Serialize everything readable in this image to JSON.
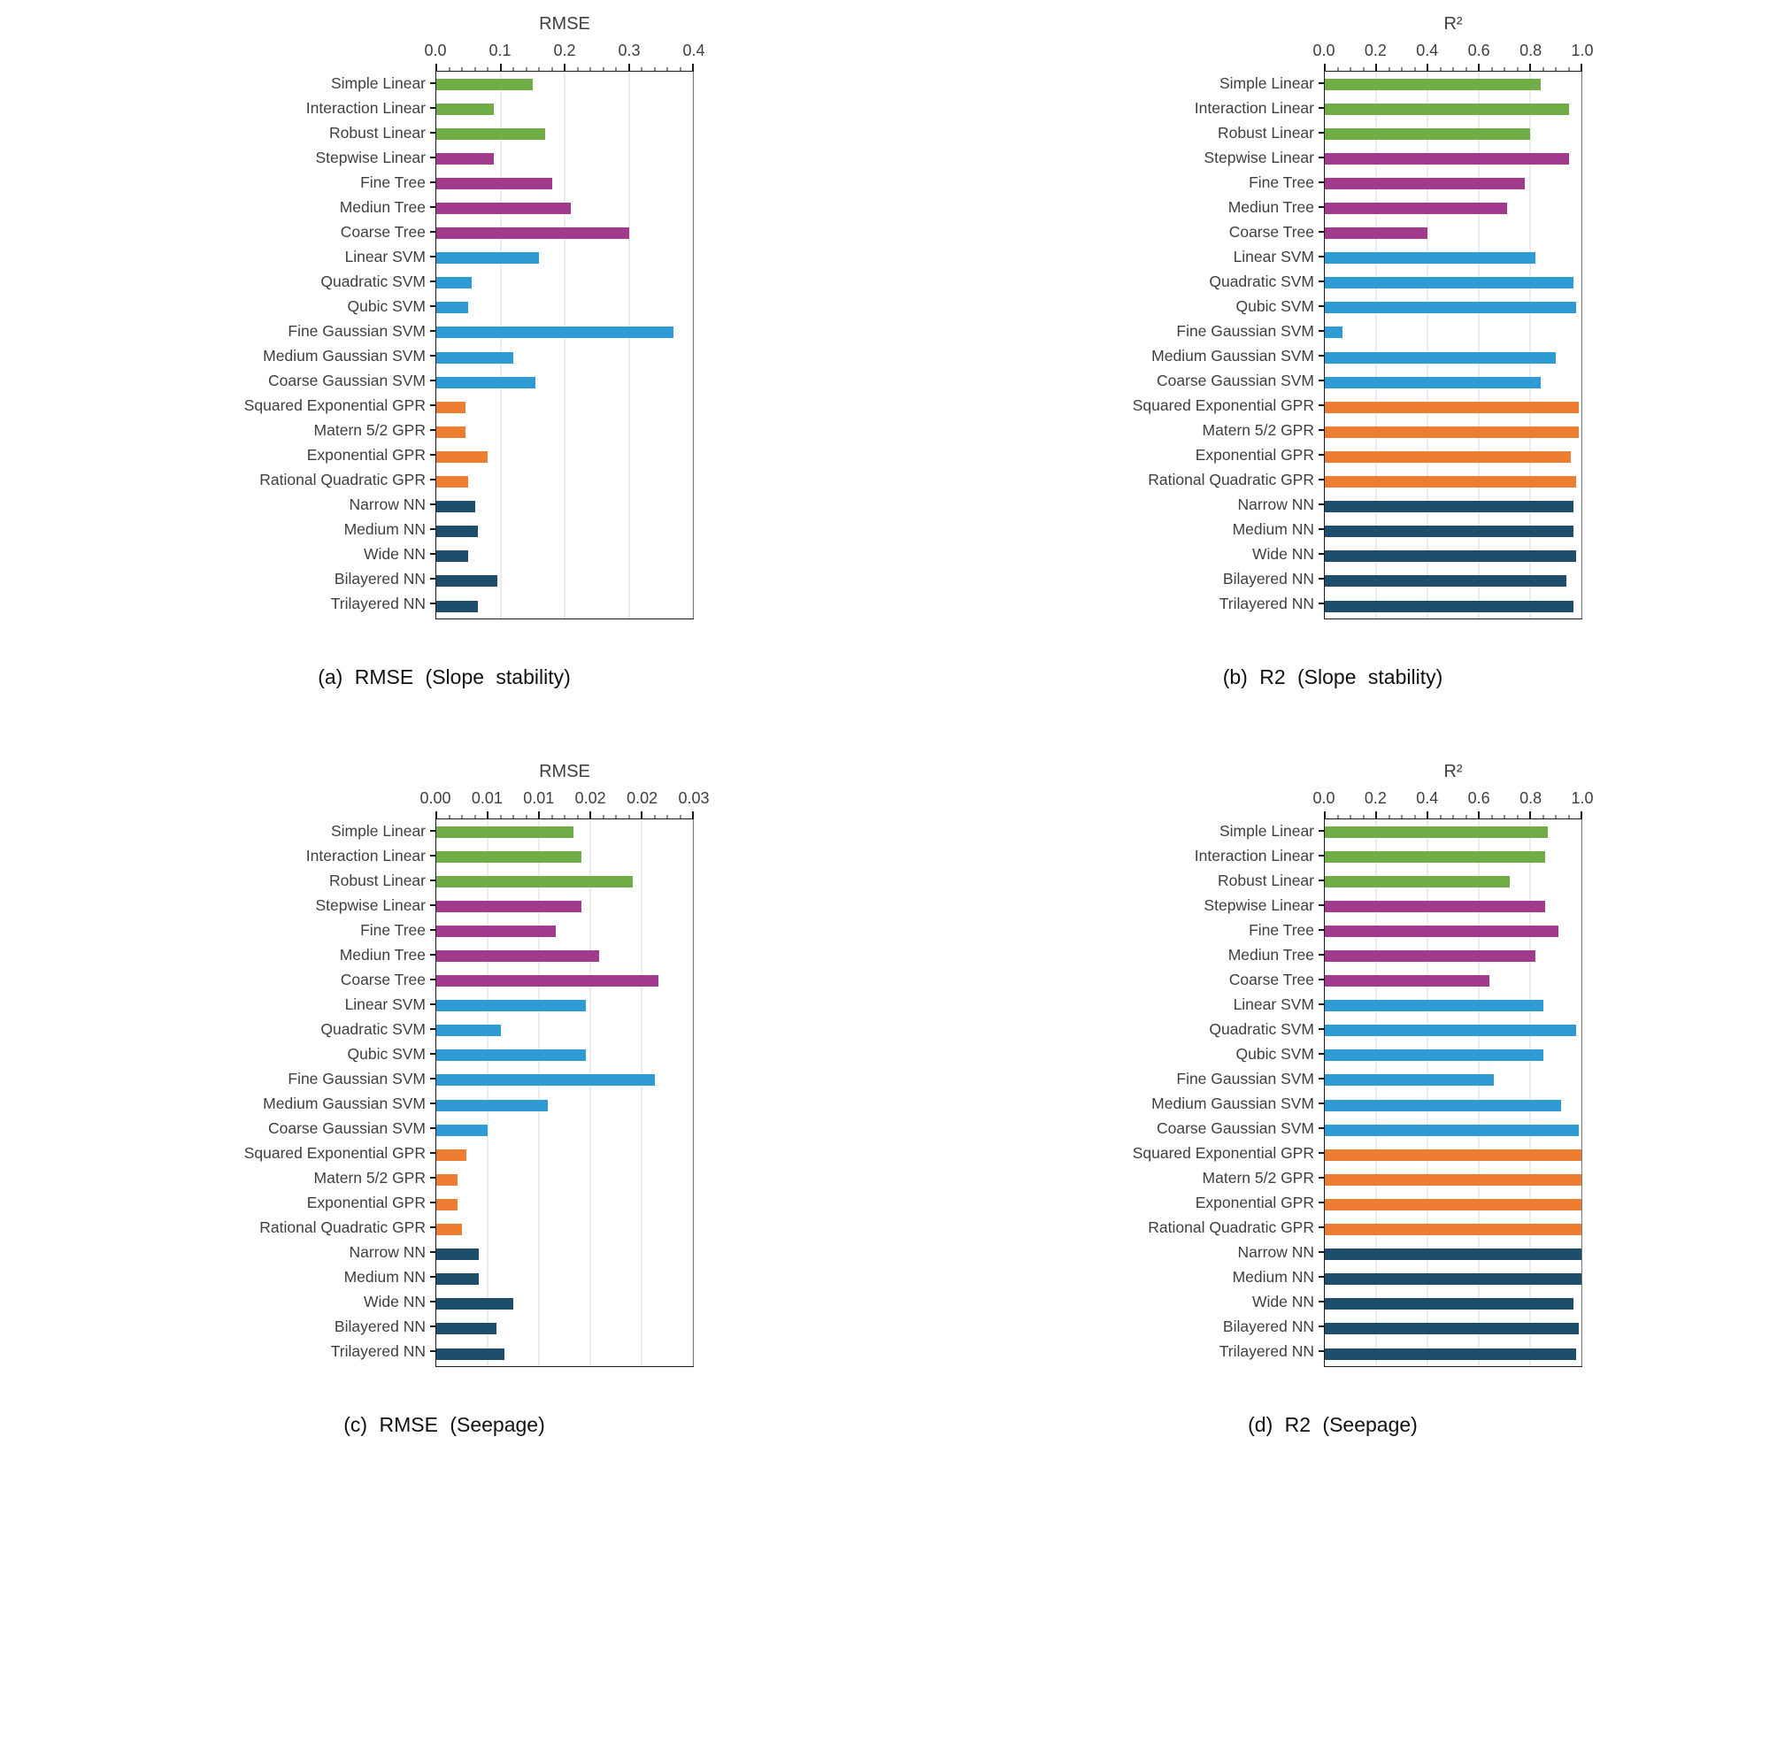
{
  "colors": {
    "linear": "#70AD47",
    "tree": "#A23B8E",
    "svm": "#2E9BD5",
    "gpr": "#ED7D31",
    "nn": "#1E4E6B"
  },
  "category_groups": [
    "linear",
    "linear",
    "linear",
    "tree",
    "tree",
    "tree",
    "tree",
    "svm",
    "svm",
    "svm",
    "svm",
    "svm",
    "svm",
    "gpr",
    "gpr",
    "gpr",
    "gpr",
    "nn",
    "nn",
    "nn",
    "nn",
    "nn"
  ],
  "chart_data": [
    {
      "id": "a",
      "type": "bar",
      "orientation": "horizontal",
      "axis_title": "RMSE",
      "caption": "(a) RMSE (Slope stability)",
      "xlim": [
        0,
        0.4
      ],
      "ticks": [
        0,
        0.1,
        0.2,
        0.3,
        0.4
      ],
      "tick_labels": [
        "0.0",
        "0.1",
        "0.2",
        "0.3",
        "0.4"
      ],
      "minor_per_major": 4,
      "grid": true,
      "legend": false,
      "categories": [
        "Simple Linear",
        "Interaction Linear",
        "Robust Linear",
        "Stepwise Linear",
        "Fine Tree",
        "Mediun Tree",
        "Coarse Tree",
        "Linear SVM",
        "Quadratic SVM",
        "Qubic SVM",
        "Fine Gaussian SVM",
        "Medium Gaussian SVM",
        "Coarse Gaussian SVM",
        "Squared Exponential GPR",
        "Matern 5/2 GPR",
        "Exponential GPR",
        "Rational Quadratic GPR",
        "Narrow NN",
        "Medium NN",
        "Wide NN",
        "Bilayered NN",
        "Trilayered NN"
      ],
      "values": [
        0.15,
        0.09,
        0.17,
        0.09,
        0.18,
        0.21,
        0.3,
        0.16,
        0.055,
        0.05,
        0.37,
        0.12,
        0.155,
        0.045,
        0.045,
        0.08,
        0.05,
        0.06,
        0.065,
        0.05,
        0.095,
        0.065
      ]
    },
    {
      "id": "b",
      "type": "bar",
      "orientation": "horizontal",
      "axis_title": "R²",
      "caption": "(b) R2 (Slope stability)",
      "xlim": [
        0,
        1.0
      ],
      "ticks": [
        0,
        0.2,
        0.4,
        0.6,
        0.8,
        1.0
      ],
      "tick_labels": [
        "0.0",
        "0.2",
        "0.4",
        "0.6",
        "0.8",
        "1.0"
      ],
      "minor_per_major": 3,
      "grid": true,
      "legend": false,
      "categories": [
        "Simple Linear",
        "Interaction Linear",
        "Robust Linear",
        "Stepwise Linear",
        "Fine Tree",
        "Mediun Tree",
        "Coarse Tree",
        "Linear SVM",
        "Quadratic SVM",
        "Qubic SVM",
        "Fine Gaussian SVM",
        "Medium Gaussian SVM",
        "Coarse Gaussian SVM",
        "Squared Exponential GPR",
        "Matern 5/2 GPR",
        "Exponential GPR",
        "Rational Quadratic GPR",
        "Narrow NN",
        "Medium NN",
        "Wide NN",
        "Bilayered NN",
        "Trilayered NN"
      ],
      "values": [
        0.84,
        0.95,
        0.8,
        0.95,
        0.78,
        0.71,
        0.4,
        0.82,
        0.97,
        0.98,
        0.07,
        0.9,
        0.84,
        0.99,
        0.99,
        0.96,
        0.98,
        0.97,
        0.97,
        0.98,
        0.94,
        0.97
      ]
    },
    {
      "id": "c",
      "type": "bar",
      "orientation": "horizontal",
      "axis_title": "RMSE",
      "caption": "(c) RMSE (Seepage)",
      "xlim": [
        0,
        0.03
      ],
      "ticks": [
        0,
        0.006,
        0.012,
        0.018,
        0.024,
        0.03
      ],
      "tick_labels": [
        "0.00",
        "0.01",
        "0.01",
        "0.02",
        "0.02",
        "0.03"
      ],
      "minor_per_major": 3,
      "grid": true,
      "legend": false,
      "categories": [
        "Simple Linear",
        "Interaction Linear",
        "Robust Linear",
        "Stepwise Linear",
        "Fine Tree",
        "Mediun Tree",
        "Coarse Tree",
        "Linear SVM",
        "Quadratic SVM",
        "Qubic SVM",
        "Fine Gaussian SVM",
        "Medium Gaussian SVM",
        "Coarse Gaussian SVM",
        "Squared Exponential GPR",
        "Matern 5/2 GPR",
        "Exponential GPR",
        "Rational Quadratic GPR",
        "Narrow NN",
        "Medium NN",
        "Wide NN",
        "Bilayered NN",
        "Trilayered NN"
      ],
      "values": [
        0.016,
        0.017,
        0.023,
        0.017,
        0.014,
        0.019,
        0.026,
        0.0175,
        0.0075,
        0.0175,
        0.0255,
        0.013,
        0.006,
        0.0035,
        0.0025,
        0.0025,
        0.003,
        0.005,
        0.005,
        0.009,
        0.007,
        0.008
      ]
    },
    {
      "id": "d",
      "type": "bar",
      "orientation": "horizontal",
      "axis_title": "R²",
      "caption": "(d) R2 (Seepage)",
      "xlim": [
        0,
        1.0
      ],
      "ticks": [
        0,
        0.2,
        0.4,
        0.6,
        0.8,
        1.0
      ],
      "tick_labels": [
        "0.0",
        "0.2",
        "0.4",
        "0.6",
        "0.8",
        "1.0"
      ],
      "minor_per_major": 3,
      "grid": true,
      "legend": false,
      "categories": [
        "Simple Linear",
        "Interaction Linear",
        "Robust Linear",
        "Stepwise Linear",
        "Fine Tree",
        "Mediun Tree",
        "Coarse Tree",
        "Linear SVM",
        "Quadratic SVM",
        "Qubic SVM",
        "Fine Gaussian SVM",
        "Medium Gaussian SVM",
        "Coarse Gaussian SVM",
        "Squared Exponential GPR",
        "Matern 5/2 GPR",
        "Exponential GPR",
        "Rational Quadratic GPR",
        "Narrow NN",
        "Medium NN",
        "Wide NN",
        "Bilayered NN",
        "Trilayered NN"
      ],
      "values": [
        0.87,
        0.86,
        0.72,
        0.86,
        0.91,
        0.82,
        0.64,
        0.85,
        0.98,
        0.85,
        0.66,
        0.92,
        0.99,
        1.0,
        1.0,
        1.0,
        1.0,
        1.0,
        1.0,
        0.97,
        0.99,
        0.98
      ]
    }
  ]
}
